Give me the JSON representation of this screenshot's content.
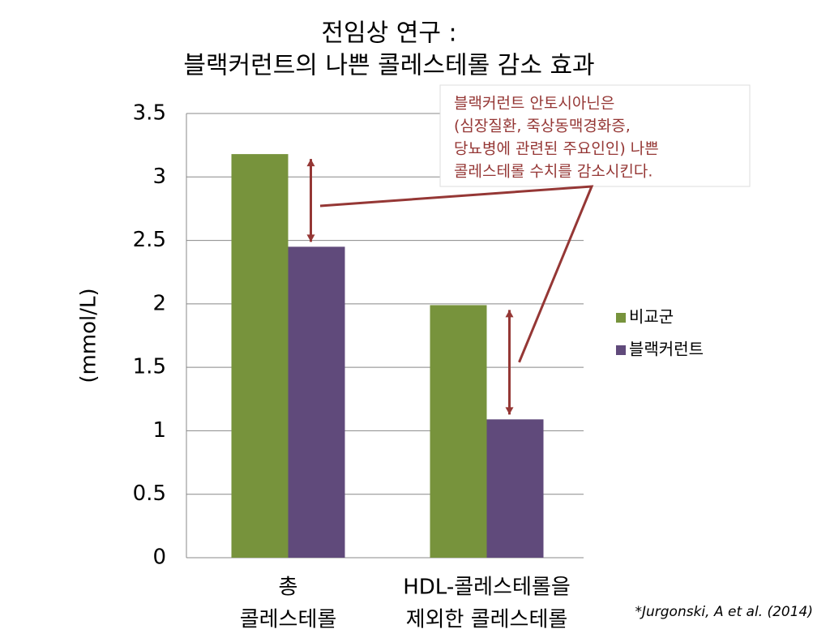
{
  "chart_data": {
    "type": "bar",
    "title": [
      "전임상 연구 :",
      "블랙커런트의 나쁜 콜레스테롤 감소 효과"
    ],
    "y_label": "(mmol/L)",
    "categories": [
      [
        "총",
        "콜레스테롤"
      ],
      [
        "HDL-콜레스테롤을",
        "제외한 콜레스테롤"
      ]
    ],
    "series": [
      {
        "name": "비교군",
        "color": "#77933c",
        "values": [
          3.18,
          1.99
        ]
      },
      {
        "name": "블랙커런트",
        "color": "#604a7b",
        "values": [
          2.45,
          1.09
        ]
      }
    ],
    "ylim": [
      0,
      3.5
    ],
    "yticks": [
      0,
      0.5,
      1,
      1.5,
      2,
      2.5,
      3,
      3.5
    ],
    "grid": true,
    "legend": "right",
    "annotation": [
      "블랙커런트 안토시아닌은",
      "(심장질환, 죽상동맥경화증,",
      "당뇨병에 관련된 주요인인) 나쁜",
      "콜레스테롤 수치를 감소시킨다."
    ],
    "source": "*Jurgonski, A et al. (2014)"
  }
}
